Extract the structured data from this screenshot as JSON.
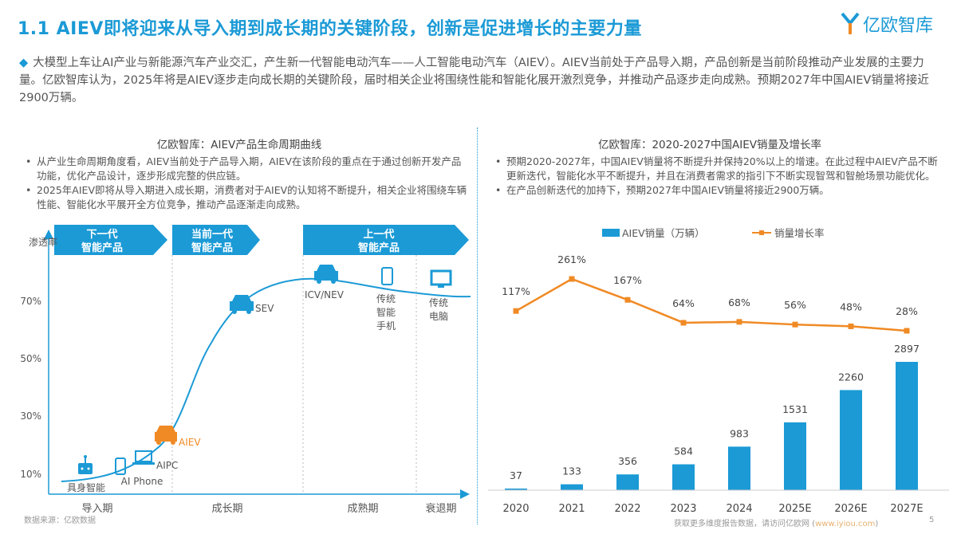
{
  "header": {
    "title": "1.1 AIEV即将迎来从导入期到成长期的关键阶段，创新是促进增长的主要力量",
    "logo_text": "亿欧智库"
  },
  "intro": "大模型上车让AI产业与新能源汽车产业交汇，产生新一代智能电动汽车——人工智能电动汽车（AIEV）。AIEV当前处于产品导入期，产品创新是当前阶段推动产业发展的主要力量。亿欧智库认为，2025年将是AIEV逐步走向成长期的关键阶段，届时相关企业将围绕性能和智能化展开激烈竞争，并推动产品逐步走向成熟。预期2027年中国AIEV销量将接近2900万辆。",
  "left": {
    "title": "亿欧智库：AIEV产品生命周期曲线",
    "bullets": [
      "从产业生命周期角度看，AIEV当前处于产品导入期，AIEV在该阶段的重点在于通过创新开发产品功能，优化产品设计，逐步形成完整的供应链。",
      "2025年AIEV即将从导入期进入成长期，消费者对于AIEV的认知将不断提升，相关企业将围绕车辆性能、智能化水平展开全方位竞争，推动产品逐渐走向成熟。"
    ],
    "banners": [
      [
        "下一代",
        "智能产品"
      ],
      [
        "当前一代",
        "智能产品"
      ],
      [
        "上一代",
        "智能产品"
      ]
    ],
    "ylabel": "渗透率",
    "yticks": [
      "70%",
      "50%",
      "30%",
      "10%"
    ],
    "phases": [
      "导入期",
      "成长期",
      "成熟期",
      "衰退期"
    ],
    "products": [
      {
        "label": "具身智能",
        "icon": "robot-icon"
      },
      {
        "label": "AI Phone",
        "icon": "phone-icon"
      },
      {
        "label": "AIPC",
        "icon": "laptop-icon"
      },
      {
        "label": "AIEV",
        "icon": "car-icon",
        "highlight": "#f08a24"
      },
      {
        "label": "SEV",
        "icon": "car-icon"
      },
      {
        "label": "ICV/NEV",
        "icon": "car-icon"
      },
      {
        "label": "传统智能手机",
        "icon": "phone-icon"
      },
      {
        "label": "传统电脑",
        "icon": "monitor-icon"
      }
    ],
    "source": "数据来源：亿欧数据"
  },
  "right": {
    "title": "亿欧智库：2020-2027中国AIEV销量及增长率",
    "bullets": [
      "预期2020-2027年，中国AIEV销量将不断提升并保持20%以上的增速。在此过程中AIEV产品不断更新迭代，智能化水平不断提升，并且在消费者需求的指引下不断实现智驾和智舱场景功能优化。",
      "在产品创新迭代的加持下，预期2027年中国AIEV销量将接近2900万辆。"
    ]
  },
  "chart_data": {
    "type": "bar+line",
    "categories": [
      "2020",
      "2021",
      "2022",
      "2023",
      "2024",
      "2025E",
      "2026E",
      "2027E"
    ],
    "series": [
      {
        "name": "AIEV销量（万辆）",
        "type": "bar",
        "color": "#1b9ad6",
        "values": [
          37,
          133,
          356,
          584,
          983,
          1531,
          2260,
          2897
        ],
        "labels": [
          "37",
          "133",
          "356",
          "584",
          "983",
          "1531",
          "2260",
          "2897"
        ]
      },
      {
        "name": "销量增长率",
        "type": "line",
        "color": "#f08a24",
        "values": [
          117,
          261,
          167,
          64,
          68,
          56,
          48,
          28
        ],
        "labels": [
          "117%",
          "261%",
          "167%",
          "64%",
          "68%",
          "56%",
          "48%",
          "28%"
        ]
      }
    ],
    "legend": "top-center",
    "grid": false
  },
  "footer": {
    "text": "获取更多维度报告数据，请访问亿欧网 (",
    "url": "www.iyiou.com",
    "close": ")",
    "page": "5"
  },
  "colors": {
    "accent": "#1b9ad6",
    "highlight": "#f08a24"
  }
}
